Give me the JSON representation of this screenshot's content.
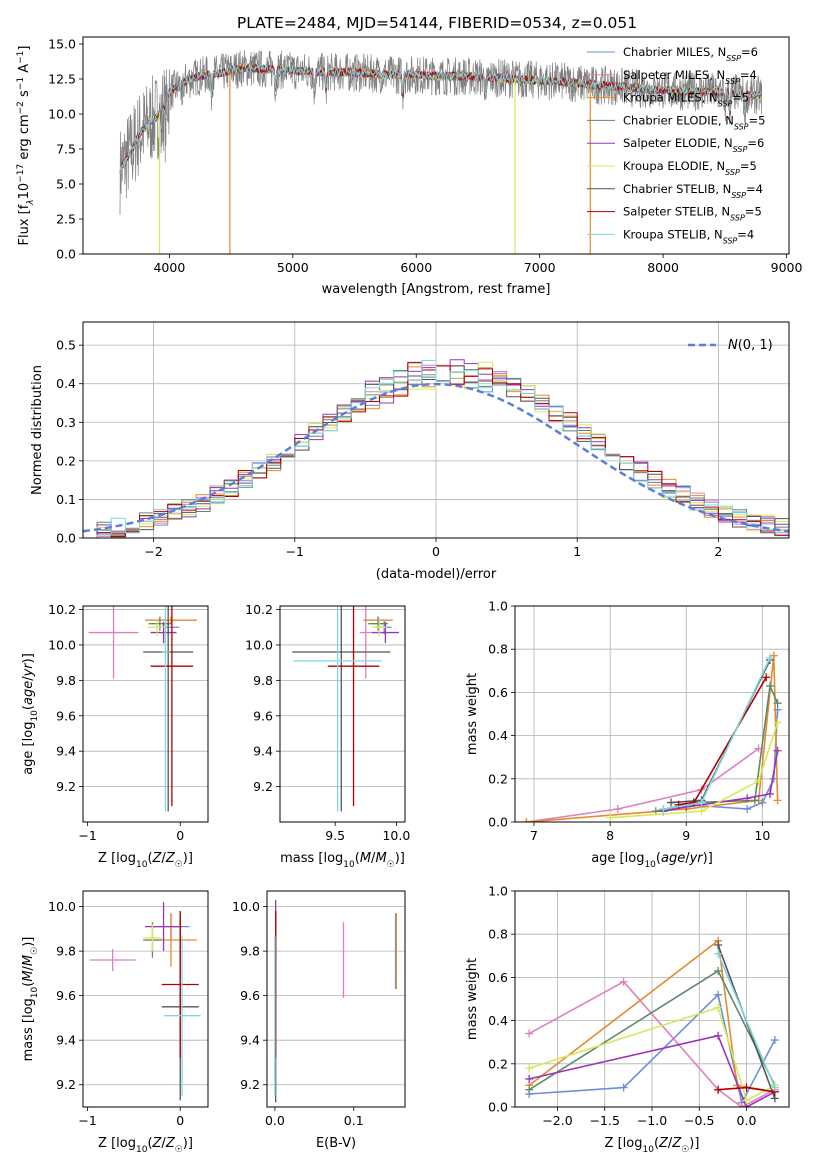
{
  "figure_title": "PLATE=2484, MJD=54144, FIBERID=0534, z=0.051",
  "colors": {
    "chabrier_miles": "#6a8fd8",
    "salpeter_miles": "#e07fbf",
    "kroupa_miles": "#e58a2e",
    "chabrier_elodie": "#5f8a6a",
    "salpeter_elodie": "#9a35b8",
    "kroupa_elodie": "#d6e85a",
    "chabrier_stelib": "#555555",
    "salpeter_stelib": "#b00000",
    "kroupa_stelib": "#7fd8e0",
    "data": "#808080",
    "normal": "#5b7fd8"
  },
  "models": [
    {
      "key": "chabrier_miles",
      "imf": "Chabrier",
      "lib": "MILES",
      "nssp": "6"
    },
    {
      "key": "salpeter_miles",
      "imf": "Salpeter",
      "lib": "MILES",
      "nssp": "4"
    },
    {
      "key": "kroupa_miles",
      "imf": "Kroupa",
      "lib": "MILES",
      "nssp": "5"
    },
    {
      "key": "chabrier_elodie",
      "imf": "Chabrier",
      "lib": "ELODIE",
      "nssp": "5"
    },
    {
      "key": "salpeter_elodie",
      "imf": "Salpeter",
      "lib": "ELODIE",
      "nssp": "6"
    },
    {
      "key": "kroupa_elodie",
      "imf": "Kroupa",
      "lib": "ELODIE",
      "nssp": "5"
    },
    {
      "key": "chabrier_stelib",
      "imf": "Chabrier",
      "lib": "STELIB",
      "nssp": "4"
    },
    {
      "key": "salpeter_stelib",
      "imf": "Salpeter",
      "lib": "STELIB",
      "nssp": "5"
    },
    {
      "key": "kroupa_stelib",
      "imf": "Kroupa",
      "lib": "STELIB",
      "nssp": "4"
    }
  ],
  "chart_data": [
    {
      "id": "spectrum",
      "type": "line",
      "xlabel": "wavelength [Angstrom, rest frame]",
      "ylabel_parts": {
        "a": "Flux [f",
        "b": "λ",
        "c": "10",
        "d": "−17",
        "e": " erg cm",
        "f": "−2",
        "g": " s",
        "h": "−1",
        "i": " A",
        "j": "−1",
        "k": "]"
      },
      "xlim": [
        3300,
        9020
      ],
      "ylim": [
        0,
        15.5
      ],
      "xticks": [
        4000,
        5000,
        6000,
        7000,
        8000,
        9000
      ],
      "yticks": [
        0.0,
        2.5,
        5.0,
        7.5,
        10.0,
        12.5,
        15.0
      ],
      "ytick_labels": [
        "0.0",
        "2.5",
        "5.0",
        "7.5",
        "10.0",
        "12.5",
        "15.0"
      ],
      "grid": false,
      "legend": "top-right",
      "continuum": {
        "x": [
          3600,
          3650,
          3700,
          3750,
          3800,
          3850,
          3900,
          3950,
          4000,
          4100,
          4200,
          4300,
          4400,
          4500,
          4600,
          4800,
          5000,
          5200,
          5400,
          5600,
          5800,
          6000,
          6200,
          6400,
          6600,
          6800,
          7000,
          7200,
          7400,
          7600,
          7800,
          8000,
          8200,
          8400,
          8600,
          8800
        ],
        "y": [
          6.0,
          6.8,
          7.5,
          8.5,
          9.0,
          9.5,
          9.8,
          10.5,
          11.5,
          12.2,
          12.6,
          12.8,
          12.9,
          13.1,
          13.3,
          13.2,
          13.1,
          13.0,
          13.0,
          12.9,
          12.8,
          12.8,
          12.7,
          12.7,
          12.6,
          12.5,
          12.4,
          12.3,
          12.1,
          12.0,
          11.8,
          11.7,
          11.6,
          11.6,
          11.5,
          11.3
        ]
      },
      "data_range": [
        3600,
        8800
      ],
      "dropouts": [
        {
          "x": 3920,
          "key": "kroupa_elodie"
        },
        {
          "x": 4490,
          "key": "kroupa_miles"
        },
        {
          "x": 6800,
          "key": "kroupa_elodie"
        },
        {
          "x": 7410,
          "key": "kroupa_miles"
        }
      ]
    },
    {
      "id": "residuals",
      "type": "histogram",
      "xlabel": "(data-model)/error",
      "ylabel": "Normed distribution",
      "xlim": [
        -2.5,
        2.5
      ],
      "ylim": [
        0,
        0.56
      ],
      "xticks": [
        -2,
        -1,
        0,
        1,
        2
      ],
      "xtick_labels": [
        "−2",
        "−1",
        "0",
        "1",
        "2"
      ],
      "yticks": [
        0.0,
        0.1,
        0.2,
        0.3,
        0.4,
        0.5
      ],
      "ytick_labels": [
        "0.0",
        "0.1",
        "0.2",
        "0.3",
        "0.4",
        "0.5"
      ],
      "bin_width": 0.1,
      "bin_start": -2.5,
      "grid": true,
      "legend": "top-right",
      "normal_label": "N(0, 1)"
    },
    {
      "id": "age_vs_Z",
      "type": "errorbar",
      "xlabel": "Z [log10(Z/Z☉)]",
      "ylabel": "age [log10(age/yr)]",
      "xlim": [
        -1.05,
        0.3
      ],
      "ylim": [
        9.0,
        10.22
      ],
      "xticks": [
        -1,
        0
      ],
      "xtick_labels": [
        "−1",
        "0"
      ],
      "yticks": [
        9.2,
        9.4,
        9.6,
        9.8,
        10.0,
        10.2
      ],
      "ytick_labels": [
        "9.2",
        "9.4",
        "9.6",
        "9.8",
        "10.0",
        "10.2"
      ],
      "points": [
        {
          "key": "chabrier_miles",
          "x": -0.13,
          "xerr": 0.12,
          "y": 10.1,
          "yerr": 0.04
        },
        {
          "key": "salpeter_miles",
          "x": -0.72,
          "xerr": 0.27,
          "y": 10.07,
          "yerr": 0.26
        },
        {
          "key": "kroupa_miles",
          "x": -0.1,
          "xerr": 0.28,
          "y": 10.14,
          "yerr": 0.02
        },
        {
          "key": "chabrier_elodie",
          "x": -0.22,
          "xerr": 0.12,
          "y": 10.12,
          "yerr": 0.04
        },
        {
          "key": "salpeter_elodie",
          "x": -0.18,
          "xerr": 0.14,
          "y": 10.07,
          "yerr": 0.06
        },
        {
          "key": "kroupa_elodie",
          "x": -0.25,
          "xerr": 0.1,
          "y": 10.1,
          "yerr": 0.05
        },
        {
          "key": "chabrier_stelib",
          "x": -0.13,
          "xerr": 0.27,
          "y": 9.96,
          "yerr": 0.9
        },
        {
          "key": "salpeter_stelib",
          "x": -0.09,
          "xerr": 0.23,
          "y": 9.88,
          "yerr": 0.79
        },
        {
          "key": "kroupa_stelib",
          "x": -0.16,
          "xerr": 0.04,
          "y": 9.96,
          "yerr": 0.9
        }
      ]
    },
    {
      "id": "age_vs_mass",
      "type": "errorbar",
      "xlabel": "mass [log10(M/M☉)]",
      "ylabel": "",
      "xlim": [
        9.05,
        10.07
      ],
      "ylim": [
        9.0,
        10.22
      ],
      "xticks": [
        9.5,
        10.0
      ],
      "xtick_labels": [
        "9.5",
        "10.0"
      ],
      "yticks": [
        9.2,
        9.4,
        9.6,
        9.8,
        10.0,
        10.2
      ],
      "ytick_labels": [
        "9.2",
        "9.4",
        "9.6",
        "9.8",
        "10.0",
        "10.2"
      ],
      "points": [
        {
          "key": "chabrier_miles",
          "x": 9.9,
          "xerr": 0.06,
          "y": 10.1,
          "yerr": 0.04
        },
        {
          "key": "salpeter_miles",
          "x": 9.75,
          "xerr": 0.05,
          "y": 10.07,
          "yerr": 0.26
        },
        {
          "key": "kroupa_miles",
          "x": 9.85,
          "xerr": 0.12,
          "y": 10.14,
          "yerr": 0.02
        },
        {
          "key": "chabrier_elodie",
          "x": 9.85,
          "xerr": 0.08,
          "y": 10.12,
          "yerr": 0.04
        },
        {
          "key": "salpeter_elodie",
          "x": 9.91,
          "xerr": 0.11,
          "y": 10.07,
          "yerr": 0.06
        },
        {
          "key": "kroupa_elodie",
          "x": 9.86,
          "xerr": 0.06,
          "y": 10.1,
          "yerr": 0.05
        },
        {
          "key": "chabrier_stelib",
          "x": 9.55,
          "xerr": 0.4,
          "y": 9.96,
          "yerr": 0.9
        },
        {
          "key": "salpeter_stelib",
          "x": 9.65,
          "xerr": 0.21,
          "y": 9.88,
          "yerr": 0.79
        },
        {
          "key": "kroupa_stelib",
          "x": 9.52,
          "xerr": 0.36,
          "y": 9.91,
          "yerr": 0.85
        }
      ]
    },
    {
      "id": "weight_vs_age",
      "type": "line",
      "xlabel": "age [log10(age/yr)]",
      "ylabel": "mass weight",
      "xlim": [
        6.75,
        10.35
      ],
      "ylim": [
        0,
        1.0
      ],
      "xticks": [
        7,
        8,
        9,
        10
      ],
      "xtick_labels": [
        "7",
        "8",
        "9",
        "10"
      ],
      "yticks": [
        0.0,
        0.2,
        0.4,
        0.6,
        0.8,
        1.0
      ],
      "ytick_labels": [
        "0.0",
        "0.2",
        "0.4",
        "0.6",
        "0.8",
        "1.0"
      ],
      "grid": true,
      "series": [
        {
          "key": "chabrier_miles",
          "x": [
            8.7,
            9.0,
            9.8,
            10.0,
            10.15,
            10.2
          ],
          "y": [
            0.05,
            0.08,
            0.06,
            0.09,
            0.2,
            0.52
          ]
        },
        {
          "key": "salpeter_miles",
          "x": [
            6.9,
            8.1,
            9.2,
            9.95
          ],
          "y": [
            0.0,
            0.06,
            0.15,
            0.34
          ]
        },
        {
          "key": "kroupa_miles",
          "x": [
            6.9,
            9.0,
            9.95,
            10.15,
            10.2
          ],
          "y": [
            0.0,
            0.06,
            0.1,
            0.77,
            0.1
          ]
        },
        {
          "key": "chabrier_elodie",
          "x": [
            8.6,
            9.1,
            9.9,
            10.1,
            10.2
          ],
          "y": [
            0.05,
            0.09,
            0.1,
            0.63,
            0.55
          ]
        },
        {
          "key": "salpeter_elodie",
          "x": [
            8.7,
            9.0,
            9.8,
            10.1,
            10.2
          ],
          "y": [
            0.05,
            0.07,
            0.11,
            0.13,
            0.33
          ]
        },
        {
          "key": "kroupa_elodie",
          "x": [
            8.0,
            9.2,
            9.95,
            10.2
          ],
          "y": [
            0.02,
            0.05,
            0.19,
            0.46
          ]
        },
        {
          "key": "chabrier_stelib",
          "x": [
            8.8,
            9.2,
            10.1
          ],
          "y": [
            0.09,
            0.1,
            0.75
          ]
        },
        {
          "key": "salpeter_stelib",
          "x": [
            8.9,
            9.1,
            10.05
          ],
          "y": [
            0.08,
            0.09,
            0.67
          ]
        },
        {
          "key": "kroupa_stelib",
          "x": [
            8.7,
            9.2,
            10.1
          ],
          "y": [
            0.06,
            0.09,
            0.76
          ]
        }
      ]
    },
    {
      "id": "mass_vs_Z",
      "type": "errorbar",
      "xlabel": "Z [log10(Z/Z☉)]",
      "ylabel": "mass [log10(M/M☉)]",
      "xlim": [
        -1.05,
        0.3
      ],
      "ylim": [
        9.1,
        10.07
      ],
      "xticks": [
        -1,
        0
      ],
      "xtick_labels": [
        "−1",
        "0"
      ],
      "yticks": [
        9.2,
        9.4,
        9.6,
        9.8,
        10.0
      ],
      "ytick_labels": [
        "9.2",
        "9.4",
        "9.6",
        "9.8",
        "10.0"
      ],
      "points": [
        {
          "key": "chabrier_miles",
          "x": -0.1,
          "xerr": 0.2,
          "y": 9.91,
          "yerr": 0.06
        },
        {
          "key": "salpeter_miles",
          "x": -0.73,
          "xerr": 0.25,
          "y": 9.76,
          "yerr": 0.05
        },
        {
          "key": "kroupa_miles",
          "x": -0.1,
          "xerr": 0.28,
          "y": 9.85,
          "yerr": 0.12
        },
        {
          "key": "chabrier_elodie",
          "x": -0.3,
          "xerr": 0.1,
          "y": 9.85,
          "yerr": 0.08
        },
        {
          "key": "salpeter_elodie",
          "x": -0.18,
          "xerr": 0.2,
          "y": 9.91,
          "yerr": 0.11
        },
        {
          "key": "kroupa_elodie",
          "x": -0.3,
          "xerr": 0.1,
          "y": 9.86,
          "yerr": 0.06
        },
        {
          "key": "chabrier_stelib",
          "x": 0.0,
          "xerr": 0.2,
          "y": 9.55,
          "yerr": 0.42
        },
        {
          "key": "salpeter_stelib",
          "x": 0.0,
          "xerr": 0.2,
          "y": 9.65,
          "yerr": 0.33
        },
        {
          "key": "kroupa_stelib",
          "x": 0.02,
          "xerr": 0.2,
          "y": 9.51,
          "yerr": 0.36
        }
      ]
    },
    {
      "id": "mass_vs_ebv",
      "type": "errorbar",
      "xlabel": "E(B-V)",
      "ylabel": "",
      "xlim": [
        -0.01,
        0.165
      ],
      "ylim": [
        9.1,
        10.07
      ],
      "xticks": [
        0.0,
        0.1
      ],
      "xtick_labels": [
        "0.0",
        "0.1"
      ],
      "yticks": [
        9.2,
        9.4,
        9.6,
        9.8,
        10.0
      ],
      "ytick_labels": [
        "9.2",
        "9.4",
        "9.6",
        "9.8",
        "10.0"
      ],
      "points": [
        {
          "key": "chabrier_miles",
          "x": 0.153,
          "xerr": 0.0,
          "y": 9.8,
          "yerr": 0.17
        },
        {
          "key": "salpeter_miles",
          "x": 0.087,
          "xerr": 0.0,
          "y": 9.76,
          "yerr": 0.17
        },
        {
          "key": "kroupa_miles",
          "x": 0.154,
          "xerr": 0.0,
          "y": 9.8,
          "yerr": 0.17
        },
        {
          "key": "chabrier_elodie",
          "x": 0.001,
          "xerr": 0.0,
          "y": 9.85,
          "yerr": 0.08
        },
        {
          "key": "salpeter_elodie",
          "x": 0.001,
          "xerr": 0.0,
          "y": 9.91,
          "yerr": 0.12
        },
        {
          "key": "kroupa_elodie",
          "x": 0.001,
          "xerr": 0.0,
          "y": 9.83,
          "yerr": 0.08
        },
        {
          "key": "chabrier_stelib",
          "x": 0.001,
          "xerr": 0.0,
          "y": 9.55,
          "yerr": 0.43
        },
        {
          "key": "salpeter_stelib",
          "x": 0.001,
          "xerr": 0.0,
          "y": 9.65,
          "yerr": 0.33
        },
        {
          "key": "kroupa_stelib",
          "x": 0.0,
          "xerr": 0.0,
          "y": 9.51,
          "yerr": 0.36
        }
      ]
    },
    {
      "id": "weight_vs_Z",
      "type": "line",
      "xlabel": "Z [log10(Z/Z☉)]",
      "ylabel": "mass weight",
      "xlim": [
        -2.45,
        0.45
      ],
      "ylim": [
        0,
        1.0
      ],
      "xticks": [
        -2.0,
        -1.5,
        -1.0,
        -0.5,
        0.0
      ],
      "xtick_labels": [
        "−2.0",
        "−1.5",
        "−1.0",
        "−0.5",
        "0.0"
      ],
      "yticks": [
        0.0,
        0.2,
        0.4,
        0.6,
        0.8,
        1.0
      ],
      "ytick_labels": [
        "0.0",
        "0.2",
        "0.4",
        "0.6",
        "0.8",
        "1.0"
      ],
      "grid": true,
      "series": [
        {
          "key": "chabrier_miles",
          "x": [
            -2.3,
            -1.3,
            -0.3,
            -0.05,
            0.3
          ],
          "y": [
            0.06,
            0.09,
            0.52,
            0.02,
            0.31
          ]
        },
        {
          "key": "salpeter_miles",
          "x": [
            -2.3,
            -1.3,
            -0.3,
            -0.05,
            0.3
          ],
          "y": [
            0.34,
            0.58,
            0.08,
            0.0,
            0.08
          ]
        },
        {
          "key": "kroupa_miles",
          "x": [
            -2.3,
            -0.3,
            -0.1,
            0.3
          ],
          "y": [
            0.1,
            0.77,
            0.1,
            0.07
          ]
        },
        {
          "key": "chabrier_elodie",
          "x": [
            -2.3,
            -0.3,
            0.3
          ],
          "y": [
            0.08,
            0.63,
            0.1
          ]
        },
        {
          "key": "salpeter_elodie",
          "x": [
            -2.3,
            -0.3,
            0.0,
            0.3
          ],
          "y": [
            0.13,
            0.33,
            0.0,
            0.07
          ]
        },
        {
          "key": "kroupa_elodie",
          "x": [
            -2.3,
            -0.3,
            0.0,
            0.3
          ],
          "y": [
            0.18,
            0.46,
            0.03,
            0.1
          ]
        },
        {
          "key": "chabrier_stelib",
          "x": [
            -0.3,
            0.3
          ],
          "y": [
            0.75,
            0.04
          ]
        },
        {
          "key": "salpeter_stelib",
          "x": [
            -0.3,
            0.0,
            0.3
          ],
          "y": [
            0.08,
            0.09,
            0.07
          ]
        },
        {
          "key": "kroupa_stelib",
          "x": [
            -0.3,
            0.3
          ],
          "y": [
            0.71,
            0.09
          ]
        }
      ]
    }
  ]
}
